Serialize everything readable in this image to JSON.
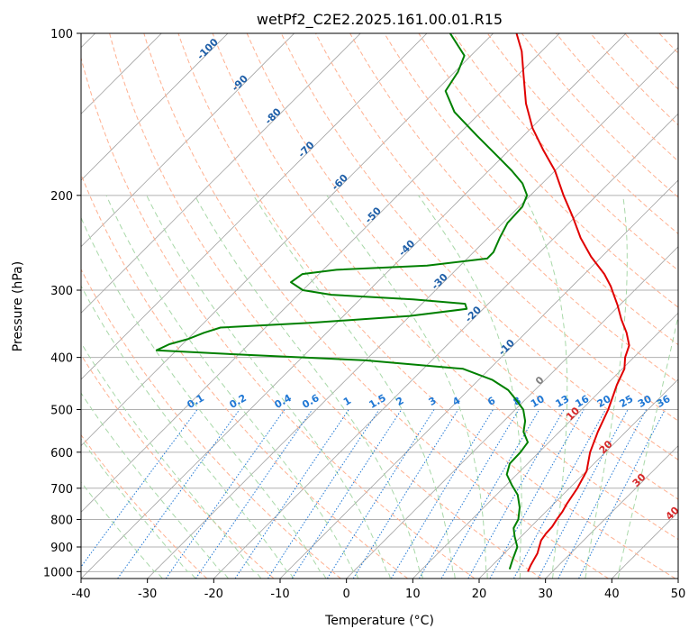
{
  "chart_data": {
    "type": "line",
    "chart_kind": "skew-T log-P diagram",
    "title": "wetPf2_C2E2.2025.161.00.01.R15",
    "xlabel": "Temperature (°C)",
    "ylabel": "Pressure (hPa)",
    "xlim": [
      -40,
      50
    ],
    "ylim_pressure": [
      1030,
      100
    ],
    "y_scale": "log",
    "x_ticks": [
      -40,
      -30,
      -20,
      -10,
      0,
      10,
      20,
      30,
      40,
      50
    ],
    "y_ticks": [
      100,
      200,
      300,
      400,
      500,
      600,
      700,
      800,
      900,
      1000
    ],
    "grid": true,
    "series": [
      {
        "role": "temperature",
        "color": "#e00000",
        "points": [
          [
            1000,
            26.3
          ],
          [
            975,
            25.8
          ],
          [
            950,
            25.4
          ],
          [
            925,
            25.0
          ],
          [
            900,
            24.3
          ],
          [
            875,
            23.6
          ],
          [
            850,
            23.3
          ],
          [
            825,
            23.2
          ],
          [
            800,
            22.8
          ],
          [
            775,
            22.5
          ],
          [
            750,
            22.0
          ],
          [
            700,
            21.2
          ],
          [
            650,
            20.0
          ],
          [
            600,
            17.7
          ],
          [
            550,
            15.8
          ],
          [
            500,
            14.0
          ],
          [
            470,
            12.6
          ],
          [
            450,
            11.6
          ],
          [
            420,
            10.3
          ],
          [
            400,
            8.7
          ],
          [
            380,
            7.5
          ],
          [
            360,
            5.2
          ],
          [
            340,
            2.4
          ],
          [
            320,
            -0.3
          ],
          [
            305,
            -2.6
          ],
          [
            295,
            -4.2
          ],
          [
            280,
            -7.0
          ],
          [
            260,
            -11.6
          ],
          [
            240,
            -16.0
          ],
          [
            220,
            -20.2
          ],
          [
            200,
            -25.0
          ],
          [
            180,
            -30.0
          ],
          [
            165,
            -34.8
          ],
          [
            150,
            -39.8
          ],
          [
            135,
            -44.5
          ],
          [
            120,
            -49.0
          ],
          [
            108,
            -53.0
          ],
          [
            100,
            -56.5
          ]
        ]
      },
      {
        "role": "dewpoint",
        "color": "#008000",
        "points": [
          [
            990,
            23.2
          ],
          [
            950,
            22.2
          ],
          [
            900,
            21.0
          ],
          [
            860,
            19.0
          ],
          [
            830,
            17.6
          ],
          [
            800,
            17.0
          ],
          [
            760,
            15.4
          ],
          [
            720,
            13.2
          ],
          [
            690,
            10.8
          ],
          [
            660,
            8.5
          ],
          [
            630,
            7.3
          ],
          [
            600,
            7.2
          ],
          [
            575,
            6.8
          ],
          [
            550,
            4.6
          ],
          [
            525,
            3.2
          ],
          [
            500,
            1.2
          ],
          [
            480,
            -1.3
          ],
          [
            460,
            -4.0
          ],
          [
            440,
            -8.0
          ],
          [
            420,
            -14.0
          ],
          [
            405,
            -30.0
          ],
          [
            395,
            -50.0
          ],
          [
            388,
            -63.0
          ],
          [
            378,
            -62.0
          ],
          [
            370,
            -60.0
          ],
          [
            360,
            -58.5
          ],
          [
            352,
            -56.8
          ],
          [
            345,
            -44.0
          ],
          [
            335,
            -30.0
          ],
          [
            325,
            -22.5
          ],
          [
            318,
            -23.5
          ],
          [
            312,
            -32.0
          ],
          [
            306,
            -45.0
          ],
          [
            300,
            -50.0
          ],
          [
            290,
            -53.0
          ],
          [
            280,
            -52.5
          ],
          [
            275,
            -48.0
          ],
          [
            270,
            -35.0
          ],
          [
            262,
            -27.0
          ],
          [
            255,
            -27.0
          ],
          [
            240,
            -28.2
          ],
          [
            225,
            -29.3
          ],
          [
            210,
            -29.5
          ],
          [
            200,
            -30.5
          ],
          [
            190,
            -33.0
          ],
          [
            180,
            -36.5
          ],
          [
            170,
            -40.5
          ],
          [
            155,
            -47.0
          ],
          [
            140,
            -54.0
          ],
          [
            128,
            -58.5
          ],
          [
            118,
            -59.5
          ],
          [
            110,
            -61.0
          ],
          [
            100,
            -66.5
          ]
        ]
      }
    ],
    "dry_adiabat_labels": [
      -100,
      -90,
      -80,
      -70,
      -60,
      -50,
      -40,
      -30,
      -20,
      -10,
      0,
      10,
      20,
      30,
      40
    ],
    "mixing_ratio_labels": [
      "0.1",
      "0.2",
      "0.4",
      "0.6",
      "1",
      "1.5",
      "2",
      "3",
      "4",
      "6",
      "8",
      "10",
      "13",
      "16",
      "20",
      "25",
      "30",
      "36"
    ],
    "mixing_ratio_values": [
      0.1,
      0.2,
      0.4,
      0.6,
      1,
      1.5,
      2,
      3,
      4,
      6,
      8,
      10,
      13,
      16,
      20,
      25,
      30,
      36
    ],
    "colors": {
      "isotherm": "#a0a0a0",
      "grid": "#b0b0b0",
      "dry_adiabat": "#ffb090",
      "moist_adiabat": "#a8d8a8",
      "mixing_ratio": "#1f77d4",
      "label_cold": "#1f5fa8",
      "label_warm": "#d62728",
      "label_zero": "#808080"
    }
  }
}
